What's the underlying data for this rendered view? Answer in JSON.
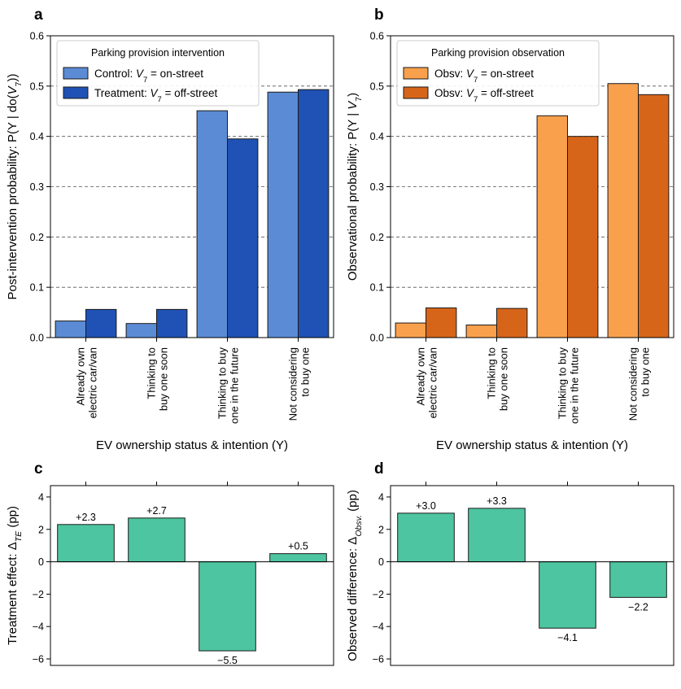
{
  "chart_data": [
    {
      "panel": "a",
      "type": "bar",
      "ylabel": "Post-intervention probability: P(Y | do(V7))",
      "xlabel": "EV ownership status & intention (Y)",
      "categories": [
        "Already own electric car/van",
        "Thinking to buy one soon",
        "Thinking to buy one in the future",
        "Not considering to buy one"
      ],
      "ylim": [
        0,
        0.6
      ],
      "yticks": [
        "0.0",
        "0.1",
        "0.2",
        "0.3",
        "0.4",
        "0.5",
        "0.6"
      ],
      "grid": "horizontal dashed",
      "legend_title": "Parking provision intervention",
      "legend_position": "top-left",
      "series": [
        {
          "name": "Control: V7 = on-street",
          "color": "#5b8bd4",
          "values": [
            0.033,
            0.028,
            0.451,
            0.488
          ]
        },
        {
          "name": "Treatment: V7 = off-street",
          "color": "#1f52b4",
          "values": [
            0.056,
            0.056,
            0.395,
            0.493
          ]
        }
      ]
    },
    {
      "panel": "b",
      "type": "bar",
      "ylabel": "Observational probability: P(Y | V7)",
      "xlabel": "EV ownership status & intention (Y)",
      "categories": [
        "Already own electric car/van",
        "Thinking to buy one soon",
        "Thinking to buy one in the future",
        "Not considering to buy one"
      ],
      "ylim": [
        0,
        0.6
      ],
      "yticks": [
        "0.0",
        "0.1",
        "0.2",
        "0.3",
        "0.4",
        "0.5",
        "0.6"
      ],
      "grid": "horizontal dashed",
      "legend_title": "Parking provision observation",
      "legend_position": "top-left",
      "series": [
        {
          "name": "Obsv: V7 = on-street",
          "color": "#f9a04d",
          "values": [
            0.029,
            0.025,
            0.441,
            0.505
          ]
        },
        {
          "name": "Obsv: V7 = off-street",
          "color": "#d6651a",
          "values": [
            0.059,
            0.058,
            0.4,
            0.483
          ]
        }
      ]
    },
    {
      "panel": "c",
      "type": "bar",
      "ylabel": "Treatment effect: ΔTE (pp)",
      "ylim": [
        -6.4,
        4.7
      ],
      "yticks": [
        "−6",
        "−4",
        "−2",
        "0",
        "2",
        "4"
      ],
      "color": "#4dc5a0",
      "values": [
        2.3,
        2.7,
        -5.5,
        0.5
      ],
      "data_labels": [
        "+2.3",
        "+2.7",
        "−5.5",
        "+0.5"
      ]
    },
    {
      "panel": "d",
      "type": "bar",
      "ylabel": "Observed difference: ΔObsv. (pp)",
      "ylim": [
        -6.4,
        4.7
      ],
      "yticks": [
        "−6",
        "−4",
        "−2",
        "0",
        "2",
        "4"
      ],
      "color": "#4dc5a0",
      "values": [
        3.0,
        3.3,
        -4.1,
        -2.2
      ],
      "data_labels": [
        "+3.0",
        "+3.3",
        "−4.1",
        "−2.2"
      ]
    }
  ]
}
